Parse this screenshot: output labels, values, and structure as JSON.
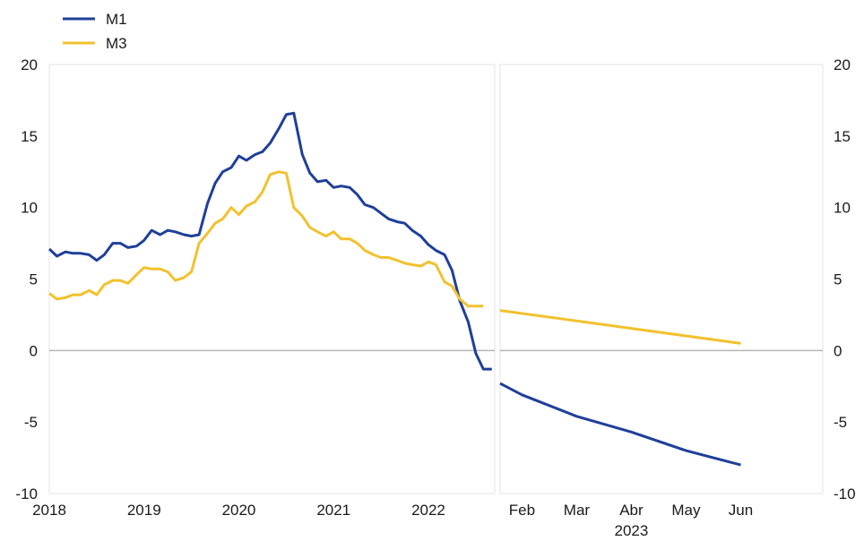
{
  "chart_data": {
    "type": "line",
    "legend": {
      "placement": "top-left",
      "entries": [
        {
          "name": "M1",
          "color": "#1f3f99"
        },
        {
          "name": "M3",
          "color": "#f2c12e"
        }
      ]
    },
    "y_axis": {
      "ylim": [
        -10,
        20
      ],
      "ticks": [
        20,
        15,
        10,
        5,
        0,
        -5,
        -10
      ],
      "tick_labels": [
        "20",
        "15",
        "10",
        "5",
        "0",
        "-5",
        "-10"
      ],
      "placement": "left and right"
    },
    "zero_line": true,
    "grid": false,
    "panels": [
      {
        "id": "history",
        "x_unit": "year",
        "xlim": [
          2018.0,
          2022.7
        ],
        "tick_values": [
          2018,
          2019,
          2020,
          2021,
          2022
        ],
        "tick_labels": [
          "2018",
          "2019",
          "2020",
          "2021",
          "2022"
        ],
        "series": [
          {
            "name": "M1",
            "color": "#1f3f99",
            "x": [
              2018.0,
              2018.08,
              2018.17,
              2018.25,
              2018.33,
              2018.42,
              2018.5,
              2018.58,
              2018.67,
              2018.75,
              2018.83,
              2018.92,
              2019.0,
              2019.08,
              2019.17,
              2019.25,
              2019.33,
              2019.42,
              2019.5,
              2019.58,
              2019.67,
              2019.75,
              2019.83,
              2019.92,
              2020.0,
              2020.08,
              2020.17,
              2020.25,
              2020.33,
              2020.42,
              2020.5,
              2020.58,
              2020.67,
              2020.75,
              2020.83,
              2020.92,
              2021.0,
              2021.08,
              2021.17,
              2021.25,
              2021.33,
              2021.42,
              2021.5,
              2021.58,
              2021.67,
              2021.75,
              2021.83,
              2021.92,
              2022.0,
              2022.08,
              2022.17,
              2022.25,
              2022.33,
              2022.42,
              2022.5,
              2022.58,
              2022.67
            ],
            "values": [
              7.1,
              6.6,
              6.9,
              6.8,
              6.8,
              6.7,
              6.3,
              6.7,
              7.5,
              7.5,
              7.2,
              7.3,
              7.7,
              8.4,
              8.1,
              8.4,
              8.3,
              8.1,
              8.0,
              8.1,
              10.3,
              11.7,
              12.5,
              12.8,
              13.6,
              13.3,
              13.7,
              13.9,
              14.5,
              15.5,
              16.5,
              16.6,
              13.7,
              12.4,
              11.8,
              11.9,
              11.4,
              11.5,
              11.4,
              10.9,
              10.2,
              10.0,
              9.6,
              9.2,
              9.0,
              8.9,
              8.4,
              8.0,
              7.4,
              7.0,
              6.7,
              5.6,
              3.5,
              2.0,
              -0.2,
              -1.3,
              -1.3
            ]
          },
          {
            "name": "M3",
            "color": "#f2c12e",
            "x": [
              2018.0,
              2018.08,
              2018.17,
              2018.25,
              2018.33,
              2018.42,
              2018.5,
              2018.58,
              2018.67,
              2018.75,
              2018.83,
              2018.92,
              2019.0,
              2019.08,
              2019.17,
              2019.25,
              2019.33,
              2019.42,
              2019.5,
              2019.58,
              2019.67,
              2019.75,
              2019.83,
              2019.92,
              2020.0,
              2020.08,
              2020.17,
              2020.25,
              2020.33,
              2020.42,
              2020.5,
              2020.58,
              2020.67,
              2020.75,
              2020.83,
              2020.92,
              2021.0,
              2021.08,
              2021.17,
              2021.25,
              2021.33,
              2021.42,
              2021.5,
              2021.58,
              2021.67,
              2021.75,
              2021.83,
              2021.92,
              2022.0,
              2022.08,
              2022.17,
              2022.25,
              2022.33,
              2022.42,
              2022.5,
              2022.58
            ],
            "values": [
              4.0,
              3.6,
              3.7,
              3.9,
              3.9,
              4.2,
              3.9,
              4.6,
              4.9,
              4.9,
              4.7,
              5.3,
              5.8,
              5.7,
              5.7,
              5.5,
              4.9,
              5.1,
              5.5,
              7.5,
              8.2,
              8.9,
              9.2,
              10.0,
              9.5,
              10.1,
              10.4,
              11.1,
              12.3,
              12.5,
              12.4,
              10.0,
              9.4,
              8.6,
              8.3,
              8.0,
              8.3,
              7.8,
              7.8,
              7.5,
              7.0,
              6.7,
              6.5,
              6.5,
              6.3,
              6.1,
              6.0,
              5.9,
              6.2,
              6.0,
              4.8,
              4.5,
              3.6,
              3.1,
              3.1,
              3.1
            ]
          }
        ]
      },
      {
        "id": "projection",
        "x_unit": "month",
        "xlim": [
          0.6,
          6.5
        ],
        "tick_values": [
          1,
          2,
          3,
          4,
          5
        ],
        "tick_labels": [
          "Feb",
          "Mar",
          "Abr",
          "May",
          "Jun"
        ],
        "year_label": "2023",
        "series": [
          {
            "name": "M1",
            "color": "#1f3f99",
            "x": [
              0.6,
              1.0,
              2.0,
              3.0,
              4.0,
              5.0
            ],
            "values": [
              -2.3,
              -3.1,
              -4.6,
              -5.7,
              -7.0,
              -8.0
            ]
          },
          {
            "name": "M3",
            "color": "#f2c12e",
            "x": [
              0.6,
              5.0
            ],
            "values": [
              2.8,
              0.5
            ]
          }
        ]
      }
    ]
  }
}
